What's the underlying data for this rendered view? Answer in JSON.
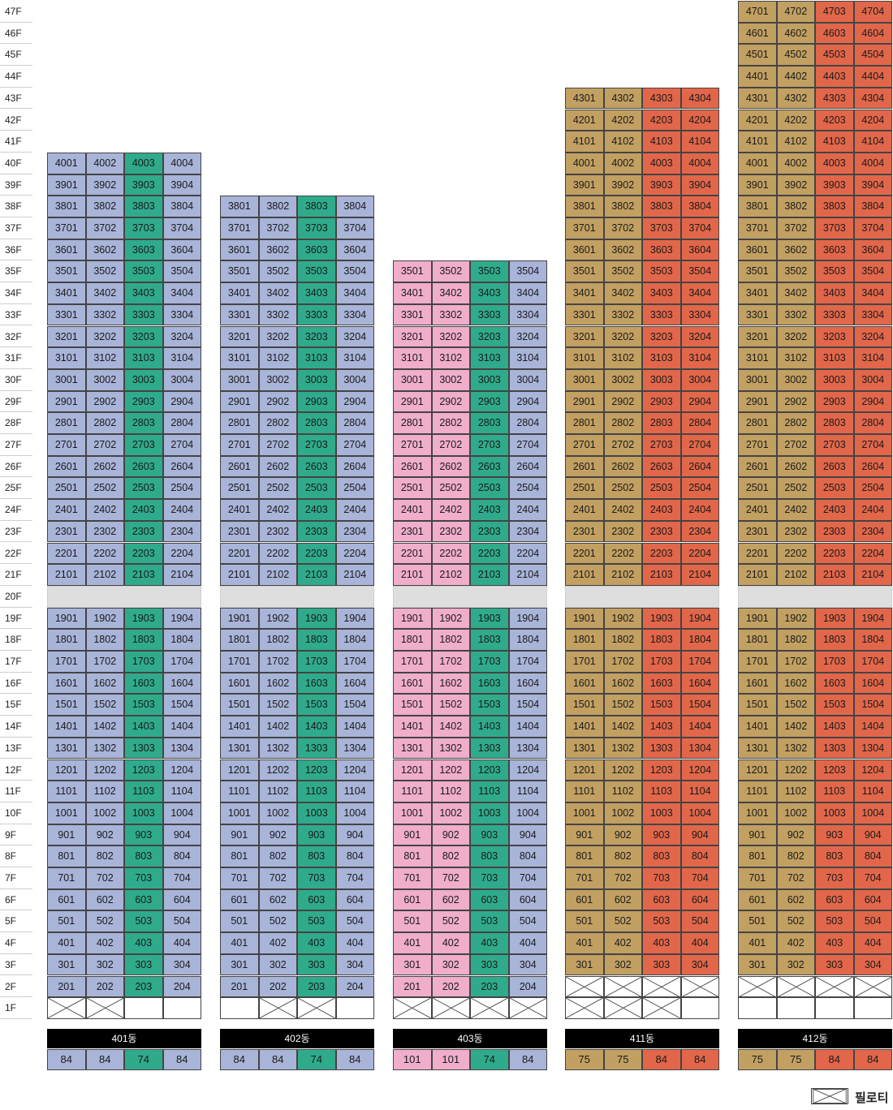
{
  "colors": {
    "blue": "#a9b4d9",
    "teal": "#2fab8c",
    "pink": "#f0aecb",
    "gold": "#c2a062",
    "red": "#e2674a",
    "pilotis": "#ffffff",
    "gap": "#dedede"
  },
  "legend": {
    "label": "필로티",
    "icon": "pilotis-cross-icon"
  },
  "buildings": [
    {
      "name": "401동",
      "top_floor": 40,
      "gap_floor": 20,
      "line_colors": [
        "blue",
        "blue",
        "teal",
        "blue"
      ],
      "types": [
        "84",
        "84",
        "74",
        "84"
      ],
      "pilotis_1f": [
        true,
        true,
        false,
        false
      ]
    },
    {
      "name": "402동",
      "top_floor": 38,
      "gap_floor": 20,
      "line_colors": [
        "blue",
        "blue",
        "teal",
        "blue"
      ],
      "types": [
        "84",
        "84",
        "74",
        "84"
      ],
      "pilotis_1f": [
        false,
        true,
        true,
        false
      ]
    },
    {
      "name": "403동",
      "top_floor": 35,
      "gap_floor": 20,
      "line_colors": [
        "pink",
        "pink",
        "teal",
        "blue"
      ],
      "types": [
        "101",
        "101",
        "74",
        "84"
      ],
      "pilotis_1f": [
        true,
        true,
        true,
        true
      ]
    },
    {
      "name": "411동",
      "top_floor": 43,
      "gap_floor": 20,
      "line_colors": [
        "gold",
        "gold",
        "red",
        "red"
      ],
      "types": [
        "75",
        "75",
        "84",
        "84"
      ],
      "pilotis_2f": [
        true,
        true,
        true,
        true
      ],
      "pilotis_1f": [
        true,
        true,
        true,
        false
      ]
    },
    {
      "name": "412동",
      "top_floor": 47,
      "gap_floor": 20,
      "line_colors": [
        "gold",
        "gold",
        "red",
        "red"
      ],
      "types": [
        "75",
        "75",
        "84",
        "84"
      ],
      "pilotis_2f": [
        true,
        true,
        true,
        true
      ],
      "pilotis_1f": [
        false,
        false,
        false,
        false
      ]
    }
  ],
  "floors": [
    "47F",
    "46F",
    "45F",
    "44F",
    "43F",
    "42F",
    "41F",
    "40F",
    "39F",
    "38F",
    "37F",
    "36F",
    "35F",
    "34F",
    "33F",
    "32F",
    "31F",
    "30F",
    "29F",
    "28F",
    "27F",
    "26F",
    "25F",
    "24F",
    "23F",
    "22F",
    "21F",
    "20F",
    "19F",
    "18F",
    "17F",
    "16F",
    "15F",
    "14F",
    "13F",
    "12F",
    "11F",
    "10F",
    "9F",
    "8F",
    "7F",
    "6F",
    "5F",
    "4F",
    "3F",
    "2F",
    "1F"
  ]
}
